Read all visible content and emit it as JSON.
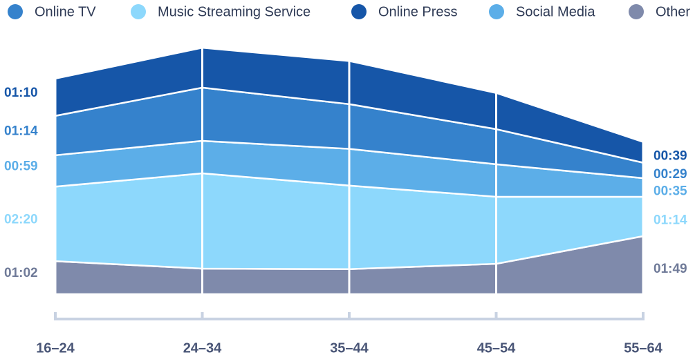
{
  "chart_data": {
    "type": "stacked_area",
    "categories": [
      "16–24",
      "24–34",
      "35–44",
      "45–54",
      "55–64"
    ],
    "series": [
      {
        "name": "Online TV",
        "color": "#3582cc",
        "values": [
          74,
          100,
          84,
          66,
          29
        ],
        "value_labels": [
          "01:14",
          null,
          null,
          null,
          "00:29"
        ]
      },
      {
        "name": "Music Streaming Service",
        "color": "#8dd8fc",
        "values": [
          140,
          179,
          157,
          126,
          74
        ],
        "value_labels": [
          "02:20",
          null,
          null,
          null,
          "01:14"
        ]
      },
      {
        "name": "Online Press",
        "color": "#1656a8",
        "values": [
          70,
          75,
          81,
          68,
          39
        ],
        "value_labels": [
          "01:10",
          null,
          null,
          null,
          "00:39"
        ]
      },
      {
        "name": "Social Media",
        "color": "#5caee8",
        "values": [
          59,
          61,
          69,
          61,
          35
        ],
        "value_labels": [
          "00:59",
          null,
          null,
          null,
          "00:35"
        ]
      },
      {
        "name": "Other",
        "color": "#7f8aab",
        "values": [
          62,
          48,
          47,
          57,
          109
        ],
        "value_labels": [
          "01:02",
          null,
          null,
          null,
          "01:49"
        ]
      }
    ],
    "ylim": [
      0,
      480
    ]
  }
}
